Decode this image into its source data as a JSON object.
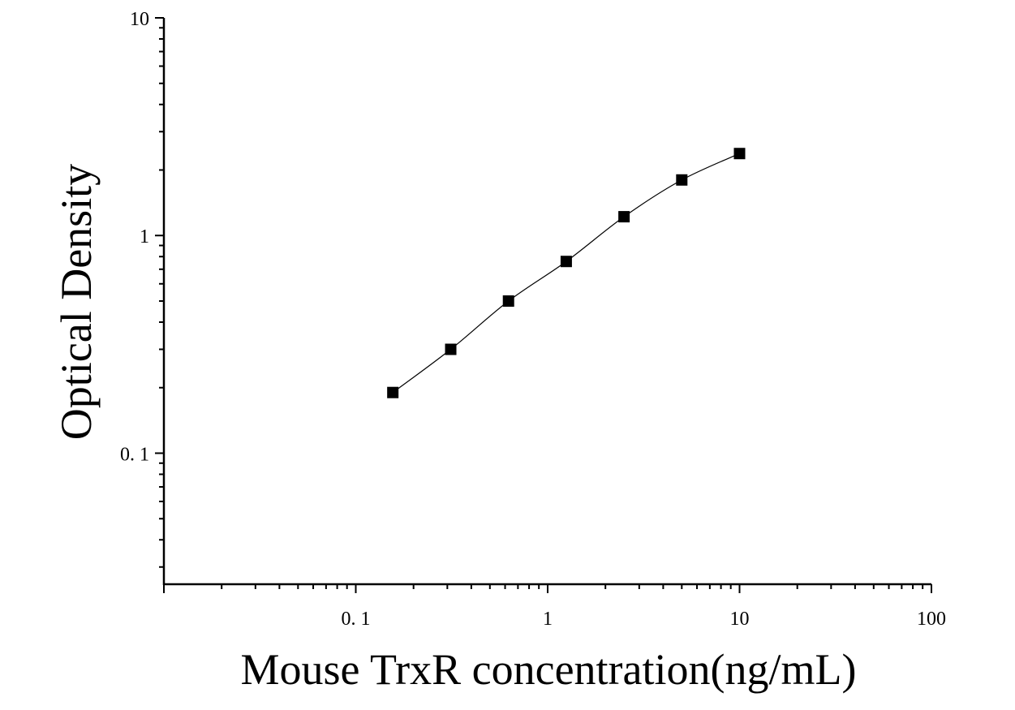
{
  "chart_data": {
    "type": "scatter",
    "xlabel": "Mouse TrxR concentration(ng/mL)",
    "ylabel": "Optical Density",
    "xscale": "log",
    "yscale": "log",
    "xlim": [
      0.01,
      100
    ],
    "ylim": [
      0.025,
      10
    ],
    "xticks": [
      {
        "value": 0.1,
        "label": "0. 1"
      },
      {
        "value": 1,
        "label": "1"
      },
      {
        "value": 10,
        "label": "10"
      },
      {
        "value": 100,
        "label": "100"
      }
    ],
    "yticks": [
      {
        "value": 0.1,
        "label": "0. 1"
      },
      {
        "value": 1,
        "label": "1"
      },
      {
        "value": 10,
        "label": "10"
      }
    ],
    "grid": false,
    "marker": "square",
    "fit_line": "smooth curve through points",
    "colors": {
      "marker": "#000000",
      "line": "#000000",
      "axis": "#000000"
    },
    "points": [
      {
        "x": 0.156,
        "y": 0.19
      },
      {
        "x": 0.3125,
        "y": 0.3
      },
      {
        "x": 0.625,
        "y": 0.5
      },
      {
        "x": 1.25,
        "y": 0.76
      },
      {
        "x": 2.5,
        "y": 1.22
      },
      {
        "x": 5,
        "y": 1.8
      },
      {
        "x": 10,
        "y": 2.38
      }
    ]
  }
}
